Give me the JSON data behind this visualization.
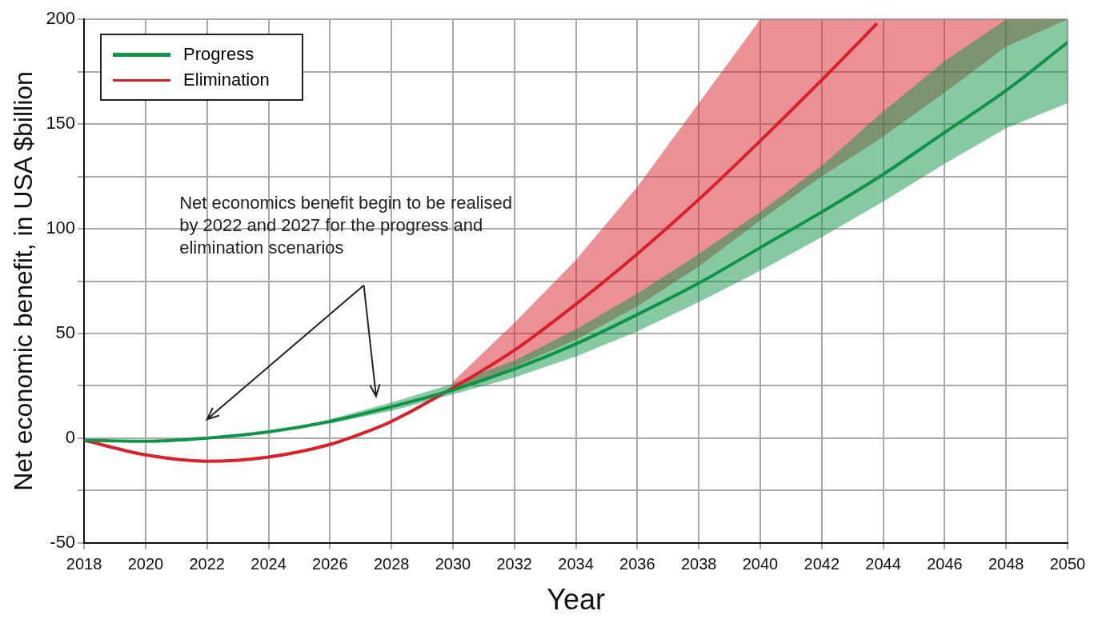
{
  "chart_data": {
    "type": "line",
    "xlabel": "Year",
    "ylabel": "Net economic benefit, in USA $billion",
    "xlim": [
      2018,
      2050
    ],
    "xticks": [
      2018,
      2020,
      2022,
      2024,
      2026,
      2028,
      2030,
      2032,
      2034,
      2036,
      2038,
      2040,
      2042,
      2044,
      2046,
      2048,
      2050
    ],
    "ylim": [
      -50,
      200
    ],
    "yticks": [
      -50,
      {
        "value": -25,
        "label": null
      },
      0,
      {
        "value": 25,
        "label": null
      },
      50,
      {
        "value": 75,
        "label": null
      },
      100,
      {
        "value": 125,
        "label": null
      },
      150,
      {
        "value": 175,
        "label": null
      },
      200
    ],
    "grid": true,
    "legend": "top left",
    "marker": "none",
    "line_style": "solid",
    "annotations": [
      "Net economics benefit begin to be realised by 2022 and 2027 for the progress and elimination scenarios"
    ],
    "series": [
      {
        "name": "Progress",
        "color": "#0f9447",
        "x": [
          2018,
          2020,
          2022,
          2024,
          2026,
          2028,
          2030,
          2032,
          2034,
          2036,
          2038,
          2040,
          2042,
          2044,
          2046,
          2048,
          2050
        ],
        "values": [
          -1,
          -1.5,
          0,
          3,
          8,
          15,
          23,
          33,
          45,
          59,
          74,
          91,
          108,
          126,
          146,
          166,
          189
        ],
        "lower": [
          null,
          null,
          null,
          null,
          7,
          13,
          21,
          29,
          39,
          51,
          65,
          80,
          96,
          113,
          131,
          148,
          160
        ],
        "upper": [
          null,
          null,
          null,
          null,
          9,
          17,
          26,
          37,
          52,
          69,
          88,
          108,
          130,
          156,
          180,
          200,
          200
        ]
      },
      {
        "name": "Elimination",
        "color": "#d7212b",
        "x": [
          2018,
          2020,
          2022,
          2024,
          2026,
          2027,
          2028,
          2030,
          2032,
          2034,
          2036,
          2038,
          2040,
          2042,
          2043.8,
          2046,
          2048,
          2050
        ],
        "values": [
          -1,
          -8,
          -11,
          -9,
          -3,
          2,
          8,
          24,
          42,
          64,
          88,
          114,
          142,
          171,
          198,
          null,
          null,
          null
        ],
        "lower": [
          null,
          null,
          null,
          null,
          null,
          null,
          null,
          22,
          34,
          47,
          63,
          82,
          104,
          125,
          142,
          165,
          187,
          200
        ],
        "upper": [
          null,
          null,
          null,
          null,
          null,
          null,
          null,
          27,
          55,
          85,
          120,
          160,
          200,
          200,
          200,
          200,
          200,
          200
        ]
      }
    ]
  }
}
